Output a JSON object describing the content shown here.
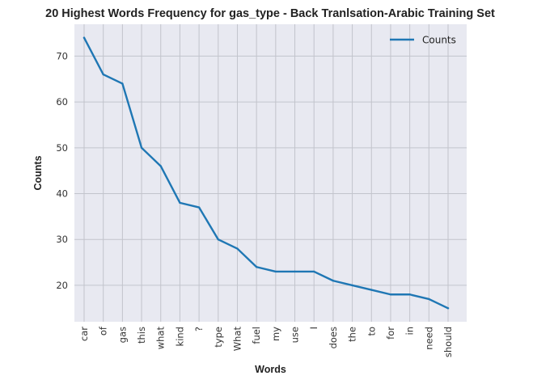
{
  "chart_data": {
    "type": "line",
    "title": "20 Highest Words Frequency for gas_type - Back Tranlsation-Arabic Training Set",
    "xlabel": "Words",
    "ylabel": "Counts",
    "categories": [
      "car",
      "of",
      "gas",
      "this",
      "what",
      "kind",
      "?",
      "type",
      "What",
      "fuel",
      "my",
      "use",
      "I",
      "does",
      "the",
      "to",
      "for",
      "in",
      "need",
      "should"
    ],
    "series": [
      {
        "name": "Counts",
        "values": [
          74,
          66,
          64,
          50,
          46,
          38,
          37,
          30,
          28,
          24,
          23,
          23,
          23,
          21,
          20,
          19,
          18,
          18,
          17,
          15
        ],
        "color": "#1f77b4"
      }
    ],
    "yticks": [
      20,
      30,
      40,
      50,
      60,
      70
    ],
    "ylim": [
      12.05,
      76.95
    ],
    "grid": true,
    "legend_position": "top-right",
    "background_color": "#e8e9f1",
    "grid_color": "#c2c4cc"
  }
}
